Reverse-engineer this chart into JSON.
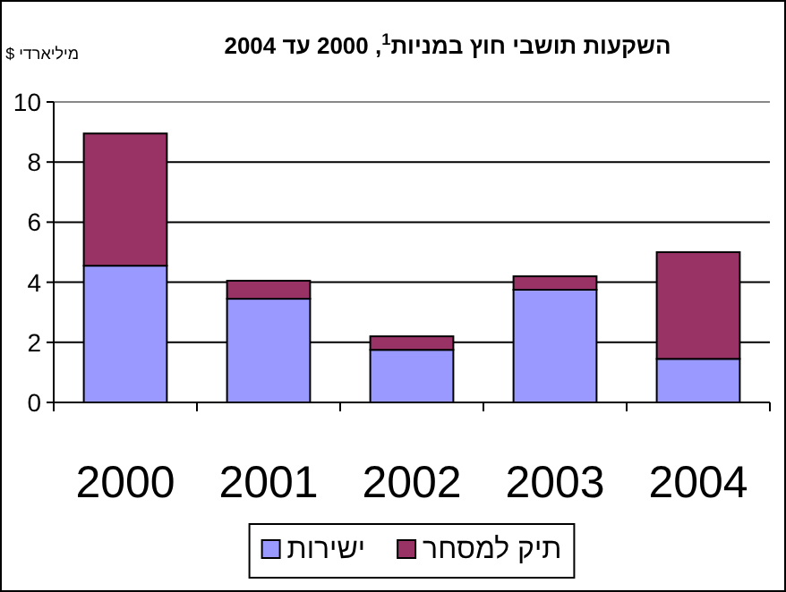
{
  "chart_data": {
    "type": "bar",
    "stacked": true,
    "title": "השקעות תושבי חוץ במניות$^{1}$, 2000 עד 2004",
    "ylabel": "מיליארדי $",
    "categories": [
      "2000",
      "2001",
      "2002",
      "2003",
      "2004"
    ],
    "series": [
      {
        "name": "ישירות",
        "color": "#9999ff",
        "values": [
          4.55,
          3.45,
          1.75,
          3.75,
          1.45
        ]
      },
      {
        "name": "תיק למסחר",
        "color": "#993366",
        "values": [
          4.4,
          0.6,
          0.45,
          0.45,
          3.55
        ]
      }
    ],
    "ylim": [
      0,
      10
    ],
    "yticks": [
      0,
      2,
      4,
      6,
      8,
      10
    ],
    "grid": "y",
    "legend": "bottom"
  }
}
